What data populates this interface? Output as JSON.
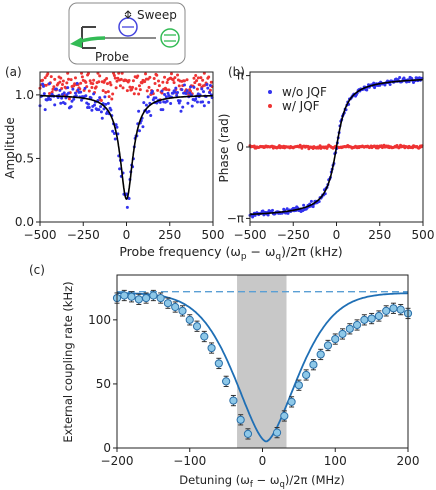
{
  "inset": {
    "sweep_label": "Sweep",
    "probe_label": "Probe"
  },
  "colors": {
    "without_jqf": "#3333ee",
    "with_jqf": "#ee3333",
    "fit": "#000000",
    "panel_c_points": "#8ec8e8",
    "panel_c_fit": "#1f6fb5",
    "dashed": "#5a9fd4",
    "shade": "#c8c8c8",
    "inset_circle_blue": "#4444dd",
    "inset_circle_green": "#33bb55"
  },
  "chart_data": [
    {
      "panel": "(a)",
      "type": "scatter",
      "xlabel": "Probe frequency (ω_p − ω_q)/2π (kHz)",
      "ylabel": "Amplitude",
      "xlim": [
        -500,
        500
      ],
      "ylim": [
        0,
        1.18
      ],
      "xticks": [
        "−500",
        "−250",
        "0",
        "250",
        "500"
      ],
      "yticks": [
        "0.0",
        "0.5",
        "1.0"
      ],
      "series": [
        {
          "name": "w/o JQF",
          "marker": "dots",
          "description": "Lorentzian dip, min ≈0.2 at 0 kHz, baseline ≈1.0, scatter ±0.1"
        },
        {
          "name": "w/ JQF",
          "marker": "dots",
          "description": "flat ≈1.0 to 1.15 across range"
        },
        {
          "name": "fit",
          "marker": "line",
          "center": 0,
          "depth": 0.82,
          "baseline": 1.0,
          "hwhm": 45
        }
      ]
    },
    {
      "panel": "(b)",
      "type": "scatter",
      "xlabel": "Probe frequency (ω_p − ω_q)/2π (kHz)",
      "ylabel": "Phase (rad)",
      "xlim": [
        -500,
        500
      ],
      "ylim": [
        -3.3,
        3.3
      ],
      "xticks": [
        "−500",
        "−250",
        "0",
        "250",
        "500"
      ],
      "yticks": [
        "−π",
        "0",
        "π"
      ],
      "legend": [
        "w/o JQF",
        "w/  JQF"
      ],
      "legend_position": "top-left",
      "series": [
        {
          "name": "w/o JQF",
          "description": "arctan step from ≈−π to ≈+π centered at 0 kHz"
        },
        {
          "name": "w/  JQF",
          "description": "flat ≈0 rad"
        },
        {
          "name": "fit",
          "marker": "line",
          "hwhm": 45
        }
      ]
    },
    {
      "panel": "(c)",
      "type": "scatter",
      "xlabel": "Detuning (ω_f − ω_q)/2π (MHz)",
      "ylabel": "External coupling rate (kHz)",
      "xlim": [
        -200,
        200
      ],
      "ylim": [
        0,
        135
      ],
      "xticks": [
        "−200",
        "−100",
        "0",
        "100",
        "200"
      ],
      "yticks": [
        "0",
        "50",
        "100"
      ],
      "dashed_line_y": 122,
      "shaded_region_x": [
        -35,
        33
      ],
      "x": [
        -200,
        -190,
        -180,
        -170,
        -160,
        -150,
        -140,
        -130,
        -120,
        -110,
        -100,
        -90,
        -80,
        -70,
        -60,
        -50,
        -40,
        -30,
        -20,
        20,
        30,
        40,
        50,
        60,
        70,
        80,
        90,
        100,
        110,
        120,
        130,
        140,
        150,
        160,
        170,
        180,
        190,
        200
      ],
      "values": [
        117,
        119,
        118,
        116,
        117,
        119,
        117,
        113,
        110,
        107,
        100,
        95,
        87,
        78,
        66,
        52,
        37,
        22,
        11,
        12,
        25,
        36,
        49,
        57,
        65,
        73,
        80,
        85,
        89,
        93,
        96,
        100,
        101,
        103,
        107,
        109,
        108,
        105
      ],
      "fit_description": "smooth dip to ≈5 kHz near 0 MHz, asymptote ≈121"
    }
  ],
  "panels": {
    "a_label": "(a)",
    "b_label": "(b)",
    "c_label": "(c)",
    "a_xlabel": "Probe frequency (ω",
    "b_legend_1": "w/o JQF",
    "b_legend_2": "w/  JQF"
  }
}
